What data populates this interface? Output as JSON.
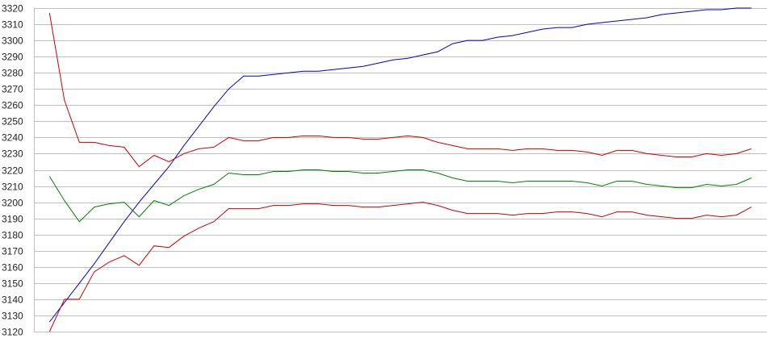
{
  "chart_data": {
    "type": "line",
    "title": "",
    "xlabel": "",
    "ylabel": "",
    "ylim": [
      3120,
      3320
    ],
    "yticks": [
      3120,
      3130,
      3140,
      3150,
      3160,
      3170,
      3180,
      3190,
      3200,
      3210,
      3220,
      3230,
      3240,
      3250,
      3260,
      3270,
      3280,
      3290,
      3300,
      3310,
      3320
    ],
    "grid": true,
    "legend": "none",
    "x": [
      0,
      1,
      2,
      3,
      4,
      5,
      6,
      7,
      8,
      9,
      10,
      11,
      12,
      13,
      14,
      15,
      16,
      17,
      18,
      19,
      20,
      21,
      22,
      23,
      24,
      25,
      26,
      27,
      28,
      29,
      30,
      31,
      32,
      33,
      34,
      35,
      36,
      37,
      38,
      39,
      40,
      41,
      42,
      43,
      44,
      45,
      46,
      47
    ],
    "series": [
      {
        "name": "blue",
        "color": "#0000cc",
        "values": [
          3126,
          3138,
          3150,
          3162,
          3175,
          3188,
          3200,
          3211,
          3222,
          3235,
          3247,
          3259,
          3270,
          3278,
          3278,
          3279,
          3280,
          3281,
          3281,
          3282,
          3283,
          3284,
          3286,
          3288,
          3289,
          3291,
          3293,
          3298,
          3300,
          3300,
          3302,
          3303,
          3305,
          3307,
          3308,
          3308,
          3310,
          3311,
          3312,
          3313,
          3314,
          3316,
          3317,
          3318,
          3319,
          3319,
          3320,
          3320
        ]
      },
      {
        "name": "red-upper",
        "color": "#cc0000",
        "values": [
          3317,
          3263,
          3237,
          3237,
          3235,
          3234,
          3222,
          3229,
          3225,
          3230,
          3233,
          3234,
          3240,
          3238,
          3238,
          3240,
          3240,
          3241,
          3241,
          3240,
          3240,
          3239,
          3239,
          3240,
          3241,
          3240,
          3237,
          3235,
          3233,
          3233,
          3233,
          3232,
          3233,
          3233,
          3232,
          3232,
          3231,
          3229,
          3232,
          3232,
          3230,
          3229,
          3228,
          3228,
          3230,
          3229,
          3230,
          3233
        ]
      },
      {
        "name": "green",
        "color": "#008000",
        "values": [
          3216,
          3201,
          3188,
          3197,
          3199,
          3200,
          3191,
          3201,
          3198,
          3204,
          3208,
          3211,
          3218,
          3217,
          3217,
          3219,
          3219,
          3220,
          3220,
          3219,
          3219,
          3218,
          3218,
          3219,
          3220,
          3220,
          3218,
          3215,
          3213,
          3213,
          3213,
          3212,
          3213,
          3213,
          3213,
          3213,
          3212,
          3210,
          3213,
          3213,
          3211,
          3210,
          3209,
          3209,
          3211,
          3210,
          3211,
          3215
        ]
      },
      {
        "name": "red-lower",
        "color": "#cc0000",
        "values": [
          3120,
          3140,
          3140,
          3157,
          3163,
          3167,
          3161,
          3173,
          3172,
          3179,
          3184,
          3188,
          3196,
          3196,
          3196,
          3198,
          3198,
          3199,
          3199,
          3198,
          3198,
          3197,
          3197,
          3198,
          3199,
          3200,
          3198,
          3195,
          3193,
          3193,
          3193,
          3192,
          3193,
          3193,
          3194,
          3194,
          3193,
          3191,
          3194,
          3194,
          3192,
          3191,
          3190,
          3190,
          3192,
          3191,
          3192,
          3197
        ]
      }
    ]
  }
}
